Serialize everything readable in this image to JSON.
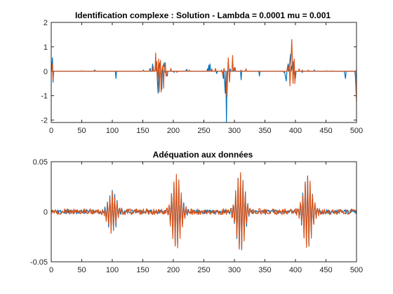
{
  "chart_data": [
    {
      "type": "line",
      "title": "Identification complexe : Solution - Lambda = 0.0001 mu = 0.001",
      "xlabel": "",
      "ylabel": "",
      "xlim": [
        0,
        500
      ],
      "ylim": [
        -2.1,
        2
      ],
      "xticks": [
        0,
        50,
        100,
        150,
        200,
        250,
        300,
        350,
        400,
        450,
        500
      ],
      "xtick_labels": [
        "0",
        "50",
        "100",
        "150",
        "200",
        "250",
        "300",
        "350",
        "400",
        "450",
        "500"
      ],
      "yticks": [
        2,
        1,
        0,
        -1,
        -2
      ],
      "ytick_labels": [
        "2",
        "1",
        "0",
        "-1",
        "-2"
      ],
      "grid": false,
      "series": [
        {
          "color": "#0072BD",
          "points": [
            [
              0,
              0
            ],
            [
              1,
              0.15
            ],
            [
              2,
              0.55
            ],
            [
              3,
              -0.45
            ],
            [
              4,
              0
            ],
            [
              50,
              0
            ],
            [
              51,
              0.02
            ],
            [
              52,
              0
            ],
            [
              70,
              0
            ],
            [
              71,
              0.05
            ],
            [
              72,
              0
            ],
            [
              100,
              0
            ],
            [
              105,
              0
            ],
            [
              106,
              -0.3
            ],
            [
              107,
              0
            ],
            [
              150,
              0
            ],
            [
              151,
              0.05
            ],
            [
              152,
              0
            ],
            [
              160,
              0
            ],
            [
              162,
              0.12
            ],
            [
              163,
              0
            ],
            [
              165,
              0
            ],
            [
              166,
              0.3
            ],
            [
              167,
              0
            ],
            [
              170,
              0
            ],
            [
              172,
              0.3
            ],
            [
              173,
              0
            ],
            [
              175,
              -0.9
            ],
            [
              176,
              0
            ],
            [
              178,
              0.35
            ],
            [
              179,
              0
            ],
            [
              181,
              -0.75
            ],
            [
              182,
              0
            ],
            [
              185,
              0.35
            ],
            [
              186,
              0
            ],
            [
              190,
              -0.2
            ],
            [
              191,
              0
            ],
            [
              200,
              0
            ],
            [
              201,
              -0.05
            ],
            [
              202,
              0
            ],
            [
              220,
              0
            ],
            [
              222,
              0.08
            ],
            [
              223,
              0
            ],
            [
              255,
              0
            ],
            [
              256,
              0.1
            ],
            [
              257,
              0
            ],
            [
              258,
              0.25
            ],
            [
              259,
              0
            ],
            [
              260,
              0.3
            ],
            [
              261,
              0
            ],
            [
              270,
              0
            ],
            [
              271,
              -0.1
            ],
            [
              272,
              0
            ],
            [
              280,
              0
            ],
            [
              282,
              -0.3
            ],
            [
              283,
              0
            ],
            [
              285,
              -0.9
            ],
            [
              286,
              0
            ],
            [
              287,
              -2.1
            ],
            [
              288,
              0
            ],
            [
              292,
              0
            ],
            [
              293,
              0.1
            ],
            [
              294,
              0
            ],
            [
              300,
              0
            ],
            [
              301,
              0.15
            ],
            [
              302,
              0
            ],
            [
              310,
              0
            ],
            [
              311,
              -0.35
            ],
            [
              312,
              0
            ],
            [
              318,
              0
            ],
            [
              319,
              0.08
            ],
            [
              320,
              0
            ],
            [
              340,
              0
            ],
            [
              341,
              -0.2
            ],
            [
              342,
              0
            ],
            [
              380,
              0
            ],
            [
              381,
              -0.05
            ],
            [
              382,
              0
            ],
            [
              385,
              -0.4
            ],
            [
              386,
              0
            ],
            [
              388,
              0.3
            ],
            [
              389,
              0
            ],
            [
              392,
              0.7
            ],
            [
              393,
              0
            ],
            [
              396,
              0.4
            ],
            [
              397,
              0
            ],
            [
              400,
              -0.3
            ],
            [
              401,
              0
            ],
            [
              410,
              0
            ],
            [
              411,
              -0.05
            ],
            [
              412,
              0
            ],
            [
              430,
              0
            ],
            [
              431,
              0.05
            ],
            [
              432,
              0
            ],
            [
              450,
              0
            ],
            [
              451,
              0.02
            ],
            [
              452,
              0
            ],
            [
              480,
              0
            ],
            [
              482,
              -0.3
            ],
            [
              483,
              0
            ],
            [
              497,
              0
            ],
            [
              498,
              -0.15
            ],
            [
              499,
              -0.55
            ],
            [
              500,
              0.1
            ]
          ]
        },
        {
          "color": "#D95319",
          "points": [
            [
              0,
              0
            ],
            [
              1,
              0.1
            ],
            [
              2,
              0.3
            ],
            [
              3,
              -0.35
            ],
            [
              4,
              0
            ],
            [
              50,
              0
            ],
            [
              51,
              0.02
            ],
            [
              52,
              0
            ],
            [
              71,
              0
            ],
            [
              72,
              0.04
            ],
            [
              73,
              0
            ],
            [
              150,
              0
            ],
            [
              151,
              0.02
            ],
            [
              152,
              0
            ],
            [
              166,
              0
            ],
            [
              167,
              0.2
            ],
            [
              168,
              0
            ],
            [
              170,
              0
            ],
            [
              171,
              0.75
            ],
            [
              172,
              0
            ],
            [
              173,
              0.4
            ],
            [
              174,
              -0.35
            ],
            [
              175,
              0
            ],
            [
              176,
              0.5
            ],
            [
              177,
              -0.85
            ],
            [
              178,
              0
            ],
            [
              179,
              0.45
            ],
            [
              180,
              -0.85
            ],
            [
              181,
              0
            ],
            [
              183,
              0.25
            ],
            [
              184,
              -0.7
            ],
            [
              185,
              0
            ],
            [
              187,
              0.35
            ],
            [
              188,
              -0.2
            ],
            [
              189,
              0
            ],
            [
              195,
              0
            ],
            [
              196,
              0.12
            ],
            [
              197,
              0
            ],
            [
              205,
              0
            ],
            [
              206,
              -0.05
            ],
            [
              207,
              0
            ],
            [
              225,
              0
            ],
            [
              226,
              0.05
            ],
            [
              227,
              0
            ],
            [
              262,
              0
            ],
            [
              263,
              0.1
            ],
            [
              264,
              0
            ],
            [
              268,
              0
            ],
            [
              269,
              0.12
            ],
            [
              270,
              0
            ],
            [
              278,
              0
            ],
            [
              279,
              0.05
            ],
            [
              280,
              0
            ],
            [
              281,
              -0.15
            ],
            [
              282,
              0
            ],
            [
              283,
              0.12
            ],
            [
              284,
              0
            ],
            [
              286,
              0
            ],
            [
              287,
              -0.8
            ],
            [
              288,
              -1.05
            ],
            [
              289,
              0
            ],
            [
              290,
              0.55
            ],
            [
              291,
              0
            ],
            [
              292,
              -0.45
            ],
            [
              293,
              0
            ],
            [
              296,
              0
            ],
            [
              297,
              0.65
            ],
            [
              298,
              0
            ],
            [
              300,
              0.15
            ],
            [
              301,
              0
            ],
            [
              310,
              0
            ],
            [
              311,
              0.05
            ],
            [
              312,
              0
            ],
            [
              318,
              0
            ],
            [
              319,
              0.1
            ],
            [
              320,
              0
            ],
            [
              380,
              0
            ],
            [
              381,
              -0.05
            ],
            [
              382,
              0
            ],
            [
              386,
              0
            ],
            [
              387,
              0.2
            ],
            [
              388,
              0
            ],
            [
              390,
              0.25
            ],
            [
              391,
              -0.6
            ],
            [
              392,
              0
            ],
            [
              394,
              1.3
            ],
            [
              395,
              0.4
            ],
            [
              396,
              -0.5
            ],
            [
              397,
              0
            ],
            [
              398,
              0.5
            ],
            [
              399,
              -0.5
            ],
            [
              400,
              0
            ],
            [
              405,
              0
            ],
            [
              406,
              0.1
            ],
            [
              407,
              0
            ],
            [
              410,
              0
            ],
            [
              411,
              0.05
            ],
            [
              412,
              0
            ],
            [
              420,
              0
            ],
            [
              421,
              0.05
            ],
            [
              422,
              0
            ],
            [
              460,
              0
            ],
            [
              461,
              0.02
            ],
            [
              462,
              0
            ],
            [
              497,
              0
            ],
            [
              498,
              -0.05
            ],
            [
              499,
              -0.7
            ],
            [
              500,
              -1.25
            ]
          ]
        }
      ]
    },
    {
      "type": "line",
      "title": "Adéquation aux données",
      "xlabel": "",
      "ylabel": "",
      "xlim": [
        0,
        500
      ],
      "ylim": [
        -0.05,
        0.05
      ],
      "xticks": [
        0,
        50,
        100,
        150,
        200,
        250,
        300,
        350,
        400,
        450,
        500
      ],
      "xtick_labels": [
        "0",
        "50",
        "100",
        "150",
        "200",
        "250",
        "300",
        "350",
        "400",
        "450",
        "500"
      ],
      "yticks": [
        0.05,
        0,
        -0.05
      ],
      "ytick_labels": [
        "0.05",
        "0",
        "-0.05"
      ],
      "grid": false,
      "series": [
        {
          "color": "#0072BD",
          "bursts": [
            [
              100,
              0.02
            ],
            [
              205,
              0.034
            ],
            [
              310,
              0.038
            ],
            [
              420,
              0.034
            ]
          ],
          "noise": 0.002
        },
        {
          "color": "#D95319",
          "bursts": [
            [
              100,
              0.02
            ],
            [
              205,
              0.036
            ],
            [
              310,
              0.039
            ],
            [
              420,
              0.035
            ]
          ],
          "noise": 0.003
        }
      ]
    }
  ]
}
